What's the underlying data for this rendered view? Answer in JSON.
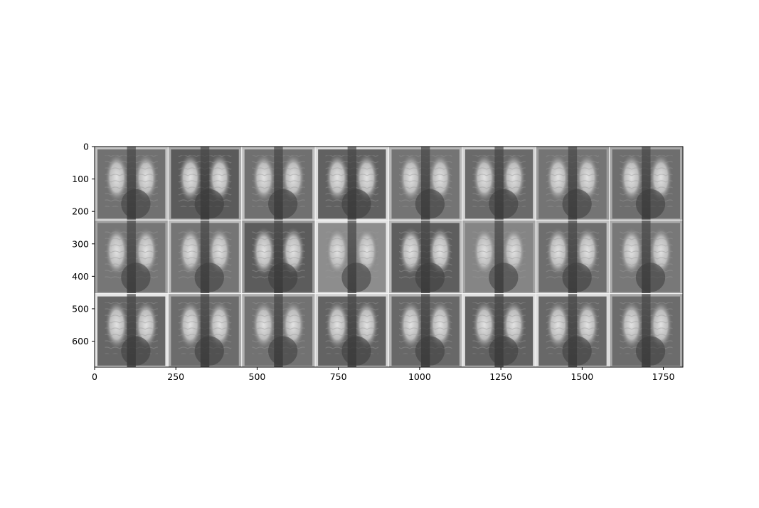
{
  "image_grid": {
    "rows": 3,
    "cols": 8,
    "x_range": [
      0,
      1810
    ],
    "y_range": [
      0,
      680
    ],
    "x_ticks": [
      0,
      250,
      500,
      750,
      1000,
      1250,
      1500,
      1750
    ],
    "y_ticks": [
      0,
      100,
      200,
      300,
      400,
      500,
      600
    ],
    "content": "chest-xray-thumbnails",
    "colors": {
      "background": "#ffffff",
      "axis": "#000000",
      "tile_dark": "#3a3a3a",
      "tile_light": "#e6e6e6"
    }
  }
}
